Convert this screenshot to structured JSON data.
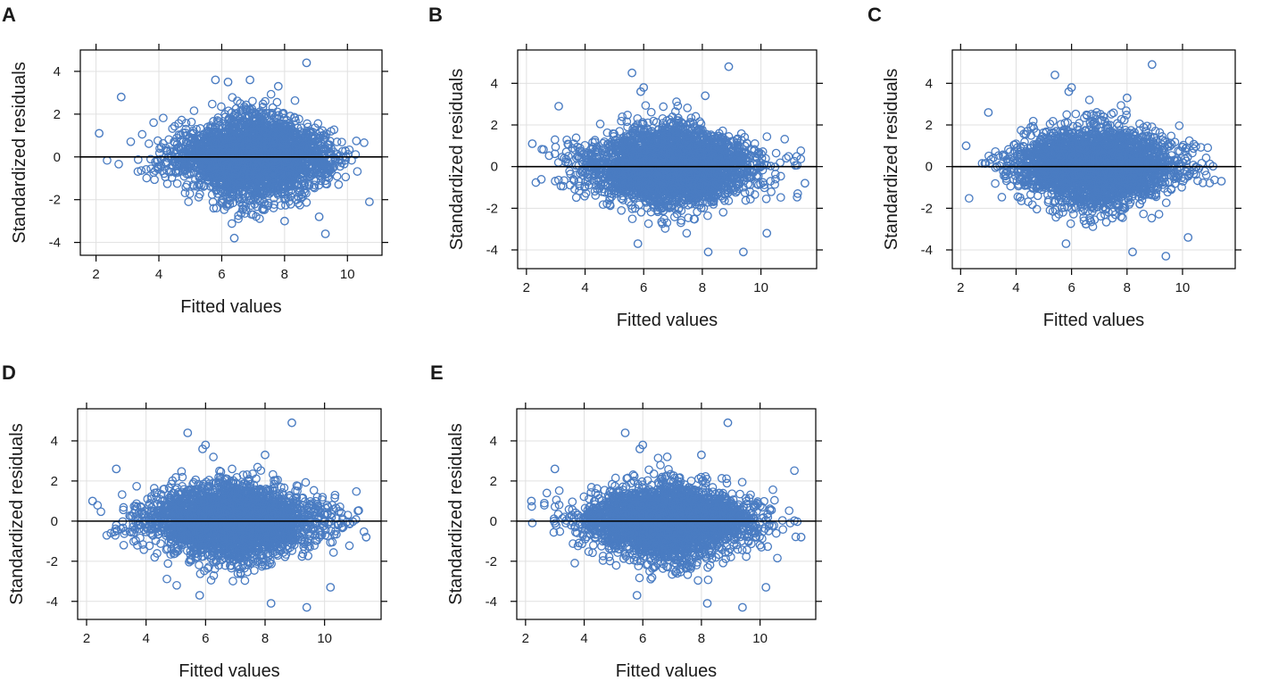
{
  "chart_data": [
    {
      "panel": "A",
      "type": "scatter",
      "xlabel": "Fitted values",
      "ylabel": "Standardized residuals",
      "xlim": [
        1.5,
        11.1
      ],
      "ylim": [
        -4.6,
        5.0
      ],
      "xticks": [
        2,
        4,
        6,
        8,
        10
      ],
      "yticks": [
        -4,
        -2,
        0,
        2,
        4
      ],
      "reference_line_y": 0,
      "n_points": 3000,
      "cluster": {
        "x_mean": 7.0,
        "x_sd": 1.2,
        "x_range": [
          2.1,
          10.7
        ],
        "y_sd": 0.85
      },
      "notable_points": [
        {
          "x": 8.7,
          "y": 4.4
        },
        {
          "x": 6.9,
          "y": 3.6
        },
        {
          "x": 5.8,
          "y": 3.6
        },
        {
          "x": 6.2,
          "y": 3.5
        },
        {
          "x": 2.8,
          "y": 2.8
        },
        {
          "x": 10.7,
          "y": -2.1
        },
        {
          "x": 6.4,
          "y": -3.8
        },
        {
          "x": 9.3,
          "y": -3.6
        },
        {
          "x": 8.0,
          "y": -3.0
        },
        {
          "x": 9.1,
          "y": -2.8
        },
        {
          "x": 2.1,
          "y": 1.1
        },
        {
          "x": 7.8,
          "y": 3.3
        }
      ]
    },
    {
      "panel": "B",
      "type": "scatter",
      "xlabel": "Fitted values",
      "ylabel": "Standardized residuals",
      "xlim": [
        1.7,
        11.9
      ],
      "ylim": [
        -4.9,
        5.6
      ],
      "xticks": [
        2,
        4,
        6,
        8,
        10
      ],
      "yticks": [
        -4,
        -2,
        0,
        2,
        4
      ],
      "reference_line_y": 0,
      "n_points": 3000,
      "cluster": {
        "x_mean": 6.9,
        "x_sd": 1.4,
        "x_range": [
          2.2,
          11.5
        ],
        "y_sd": 0.85
      },
      "notable_points": [
        {
          "x": 8.9,
          "y": 4.8
        },
        {
          "x": 5.6,
          "y": 4.5
        },
        {
          "x": 6.0,
          "y": 3.8
        },
        {
          "x": 5.9,
          "y": 3.6
        },
        {
          "x": 3.1,
          "y": 2.9
        },
        {
          "x": 9.4,
          "y": -4.1
        },
        {
          "x": 8.2,
          "y": -4.1
        },
        {
          "x": 5.8,
          "y": -3.7
        },
        {
          "x": 10.2,
          "y": -3.2
        },
        {
          "x": 11.5,
          "y": -0.8
        },
        {
          "x": 2.2,
          "y": 1.1
        },
        {
          "x": 8.1,
          "y": 3.4
        }
      ]
    },
    {
      "panel": "C",
      "type": "scatter",
      "xlabel": "Fitted values",
      "ylabel": "Standardized residuals",
      "xlim": [
        1.7,
        11.9
      ],
      "ylim": [
        -4.9,
        5.6
      ],
      "xticks": [
        2,
        4,
        6,
        8,
        10
      ],
      "yticks": [
        -4,
        -2,
        0,
        2,
        4
      ],
      "reference_line_y": 0,
      "n_points": 3000,
      "cluster": {
        "x_mean": 6.9,
        "x_sd": 1.4,
        "x_range": [
          2.2,
          11.5
        ],
        "y_sd": 0.85
      },
      "notable_points": [
        {
          "x": 8.9,
          "y": 4.9
        },
        {
          "x": 5.4,
          "y": 4.4
        },
        {
          "x": 6.0,
          "y": 3.8
        },
        {
          "x": 5.9,
          "y": 3.6
        },
        {
          "x": 3.0,
          "y": 2.6
        },
        {
          "x": 9.4,
          "y": -4.3
        },
        {
          "x": 8.2,
          "y": -4.1
        },
        {
          "x": 5.8,
          "y": -3.7
        },
        {
          "x": 10.2,
          "y": -3.4
        },
        {
          "x": 11.4,
          "y": -0.7
        },
        {
          "x": 2.2,
          "y": 1.0
        },
        {
          "x": 8.0,
          "y": 3.3
        }
      ]
    },
    {
      "panel": "D",
      "type": "scatter",
      "xlabel": "Fitted values",
      "ylabel": "Standardized residuals",
      "xlim": [
        1.7,
        11.9
      ],
      "ylim": [
        -4.9,
        5.6
      ],
      "xticks": [
        2,
        4,
        6,
        8,
        10
      ],
      "yticks": [
        -4,
        -2,
        0,
        2,
        4
      ],
      "reference_line_y": 0,
      "n_points": 3000,
      "cluster": {
        "x_mean": 6.9,
        "x_sd": 1.4,
        "x_range": [
          2.2,
          11.5
        ],
        "y_sd": 0.85
      },
      "notable_points": [
        {
          "x": 8.9,
          "y": 4.9
        },
        {
          "x": 5.4,
          "y": 4.4
        },
        {
          "x": 6.0,
          "y": 3.8
        },
        {
          "x": 5.9,
          "y": 3.6
        },
        {
          "x": 3.0,
          "y": 2.6
        },
        {
          "x": 9.4,
          "y": -4.3
        },
        {
          "x": 8.2,
          "y": -4.1
        },
        {
          "x": 5.8,
          "y": -3.7
        },
        {
          "x": 10.2,
          "y": -3.3
        },
        {
          "x": 11.4,
          "y": -0.8
        },
        {
          "x": 2.2,
          "y": 1.0
        },
        {
          "x": 8.0,
          "y": 3.3
        }
      ]
    },
    {
      "panel": "E",
      "type": "scatter",
      "xlabel": "Fitted values",
      "ylabel": "Standardized residuals",
      "xlim": [
        1.7,
        11.9
      ],
      "ylim": [
        -4.9,
        5.6
      ],
      "xticks": [
        2,
        4,
        6,
        8,
        10
      ],
      "yticks": [
        -4,
        -2,
        0,
        2,
        4
      ],
      "reference_line_y": 0,
      "n_points": 3000,
      "cluster": {
        "x_mean": 6.9,
        "x_sd": 1.4,
        "x_range": [
          2.2,
          11.5
        ],
        "y_sd": 0.85
      },
      "notable_points": [
        {
          "x": 8.9,
          "y": 4.9
        },
        {
          "x": 5.4,
          "y": 4.4
        },
        {
          "x": 6.0,
          "y": 3.8
        },
        {
          "x": 5.9,
          "y": 3.6
        },
        {
          "x": 3.0,
          "y": 2.6
        },
        {
          "x": 9.4,
          "y": -4.3
        },
        {
          "x": 8.2,
          "y": -4.1
        },
        {
          "x": 5.8,
          "y": -3.7
        },
        {
          "x": 10.2,
          "y": -3.3
        },
        {
          "x": 11.4,
          "y": -0.8
        },
        {
          "x": 2.2,
          "y": 1.0
        },
        {
          "x": 8.0,
          "y": 3.3
        }
      ]
    }
  ],
  "colors": {
    "marker": "#4a7cc2",
    "marker_fill": "#3f74bd",
    "frame": "#000000",
    "grid": "#e0e0e0",
    "reference_line": "#000000"
  }
}
